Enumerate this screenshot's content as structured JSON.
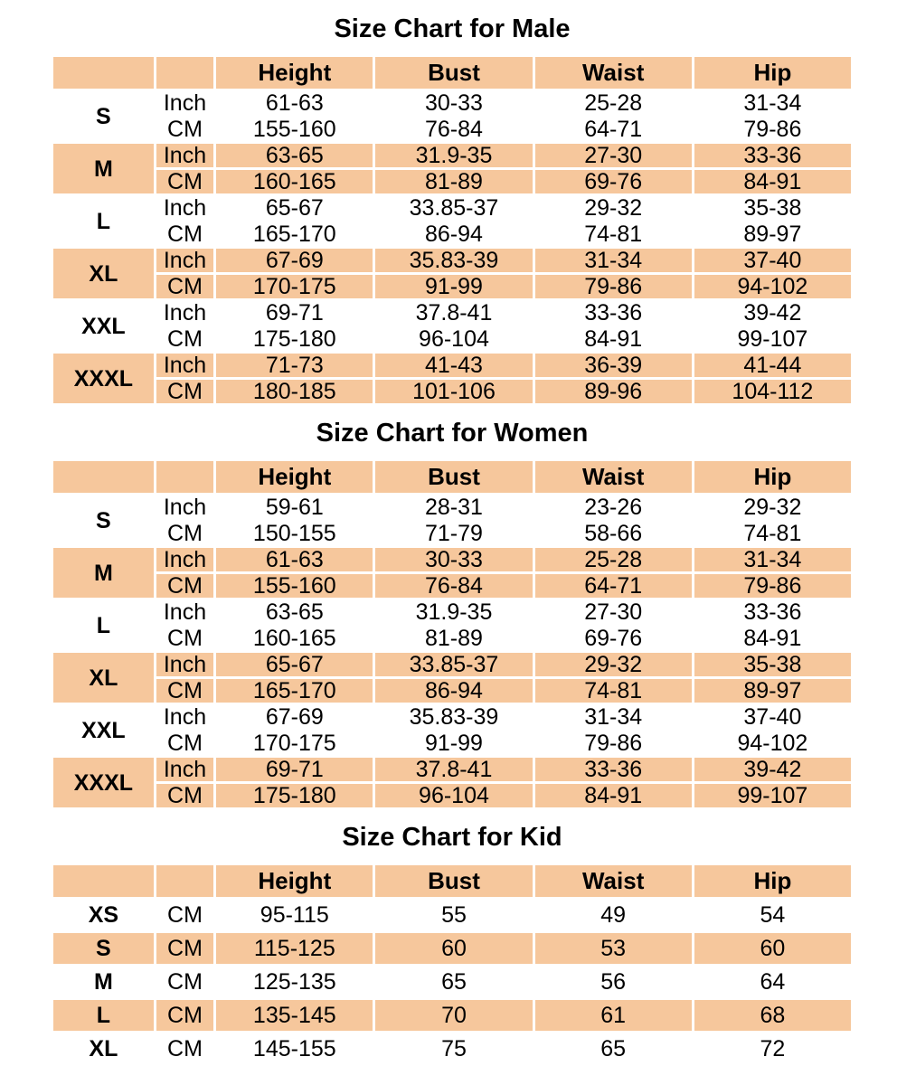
{
  "colors": {
    "band": "#F6C79C",
    "row_alt": "#FFFFFF",
    "separator": "#FFFFFF",
    "text": "#000000"
  },
  "tables": [
    {
      "title": "Size Chart for Male",
      "columns": [
        "",
        "",
        "Height",
        "Bust",
        "Waist",
        "Hip"
      ],
      "groups": [
        {
          "size": "S",
          "shaded": false,
          "rows": [
            {
              "unit": "Inch",
              "values": [
                "61-63",
                "30-33",
                "25-28",
                "31-34"
              ]
            },
            {
              "unit": "CM",
              "values": [
                "155-160",
                "76-84",
                "64-71",
                "79-86"
              ]
            }
          ]
        },
        {
          "size": "M",
          "shaded": true,
          "rows": [
            {
              "unit": "Inch",
              "values": [
                "63-65",
                "31.9-35",
                "27-30",
                "33-36"
              ]
            },
            {
              "unit": "CM",
              "values": [
                "160-165",
                "81-89",
                "69-76",
                "84-91"
              ]
            }
          ]
        },
        {
          "size": "L",
          "shaded": false,
          "rows": [
            {
              "unit": "Inch",
              "values": [
                "65-67",
                "33.85-37",
                "29-32",
                "35-38"
              ]
            },
            {
              "unit": "CM",
              "values": [
                "165-170",
                "86-94",
                "74-81",
                "89-97"
              ]
            }
          ]
        },
        {
          "size": "XL",
          "shaded": true,
          "rows": [
            {
              "unit": "Inch",
              "values": [
                "67-69",
                "35.83-39",
                "31-34",
                "37-40"
              ]
            },
            {
              "unit": "CM",
              "values": [
                "170-175",
                "91-99",
                "79-86",
                "94-102"
              ]
            }
          ]
        },
        {
          "size": "XXL",
          "shaded": false,
          "rows": [
            {
              "unit": "Inch",
              "values": [
                "69-71",
                "37.8-41",
                "33-36",
                "39-42"
              ]
            },
            {
              "unit": "CM",
              "values": [
                "175-180",
                "96-104",
                "84-91",
                "99-107"
              ]
            }
          ]
        },
        {
          "size": "XXXL",
          "shaded": true,
          "rows": [
            {
              "unit": "Inch",
              "values": [
                "71-73",
                "41-43",
                "36-39",
                "41-44"
              ]
            },
            {
              "unit": "CM",
              "values": [
                "180-185",
                "101-106",
                "89-96",
                "104-112"
              ]
            }
          ]
        }
      ]
    },
    {
      "title": "Size Chart for Women",
      "columns": [
        "",
        "",
        "Height",
        "Bust",
        "Waist",
        "Hip"
      ],
      "groups": [
        {
          "size": "S",
          "shaded": false,
          "rows": [
            {
              "unit": "Inch",
              "values": [
                "59-61",
                "28-31",
                "23-26",
                "29-32"
              ]
            },
            {
              "unit": "CM",
              "values": [
                "150-155",
                "71-79",
                "58-66",
                "74-81"
              ]
            }
          ]
        },
        {
          "size": "M",
          "shaded": true,
          "rows": [
            {
              "unit": "Inch",
              "values": [
                "61-63",
                "30-33",
                "25-28",
                "31-34"
              ]
            },
            {
              "unit": "CM",
              "values": [
                "155-160",
                "76-84",
                "64-71",
                "79-86"
              ]
            }
          ]
        },
        {
          "size": "L",
          "shaded": false,
          "rows": [
            {
              "unit": "Inch",
              "values": [
                "63-65",
                "31.9-35",
                "27-30",
                "33-36"
              ]
            },
            {
              "unit": "CM",
              "values": [
                "160-165",
                "81-89",
                "69-76",
                "84-91"
              ]
            }
          ]
        },
        {
          "size": "XL",
          "shaded": true,
          "rows": [
            {
              "unit": "Inch",
              "values": [
                "65-67",
                "33.85-37",
                "29-32",
                "35-38"
              ]
            },
            {
              "unit": "CM",
              "values": [
                "165-170",
                "86-94",
                "74-81",
                "89-97"
              ]
            }
          ]
        },
        {
          "size": "XXL",
          "shaded": false,
          "rows": [
            {
              "unit": "Inch",
              "values": [
                "67-69",
                "35.83-39",
                "31-34",
                "37-40"
              ]
            },
            {
              "unit": "CM",
              "values": [
                "170-175",
                "91-99",
                "79-86",
                "94-102"
              ]
            }
          ]
        },
        {
          "size": "XXXL",
          "shaded": true,
          "rows": [
            {
              "unit": "Inch",
              "values": [
                "69-71",
                "37.8-41",
                "33-36",
                "39-42"
              ]
            },
            {
              "unit": "CM",
              "values": [
                "175-180",
                "96-104",
                "84-91",
                "99-107"
              ]
            }
          ]
        }
      ]
    },
    {
      "title": "Size Chart for Kid",
      "columns": [
        "",
        "",
        "Height",
        "Bust",
        "Waist",
        "Hip"
      ],
      "groups": [
        {
          "size": "XS",
          "shaded": false,
          "rows": [
            {
              "unit": "CM",
              "values": [
                "95-115",
                "55",
                "49",
                "54"
              ]
            }
          ]
        },
        {
          "size": "S",
          "shaded": true,
          "rows": [
            {
              "unit": "CM",
              "values": [
                "115-125",
                "60",
                "53",
                "60"
              ]
            }
          ]
        },
        {
          "size": "M",
          "shaded": false,
          "rows": [
            {
              "unit": "CM",
              "values": [
                "125-135",
                "65",
                "56",
                "64"
              ]
            }
          ]
        },
        {
          "size": "L",
          "shaded": true,
          "rows": [
            {
              "unit": "CM",
              "values": [
                "135-145",
                "70",
                "61",
                "68"
              ]
            }
          ]
        },
        {
          "size": "XL",
          "shaded": false,
          "rows": [
            {
              "unit": "CM",
              "values": [
                "145-155",
                "75",
                "65",
                "72"
              ]
            }
          ]
        }
      ]
    }
  ]
}
